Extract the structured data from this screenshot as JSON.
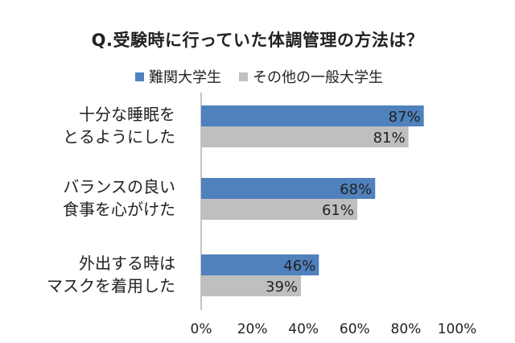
{
  "chart_data": {
    "type": "bar",
    "orientation": "horizontal",
    "title": "Q.受験時に行っていた体調管理の方法は？",
    "categories": [
      [
        "十分な睡眠を",
        "とるようにした"
      ],
      [
        "バランスの良い",
        "食事を心がけた"
      ],
      [
        "外出する時は",
        "マスクを着用した"
      ]
    ],
    "series": [
      {
        "name": "難関大学生",
        "values": [
          87,
          68,
          46
        ],
        "labels": [
          "87%",
          "68%",
          "46%"
        ],
        "color": "#4f81bd"
      },
      {
        "name": "その他の一般大学生",
        "values": [
          81,
          61,
          39
        ],
        "labels": [
          "81%",
          "61%",
          "39%"
        ],
        "color": "#bfbfbf"
      }
    ],
    "xlim": [
      0,
      100
    ],
    "ticks": [
      "0%",
      "20%",
      "40%",
      "60%",
      "80%",
      "100%"
    ],
    "legend_position": "top",
    "grid": false
  }
}
